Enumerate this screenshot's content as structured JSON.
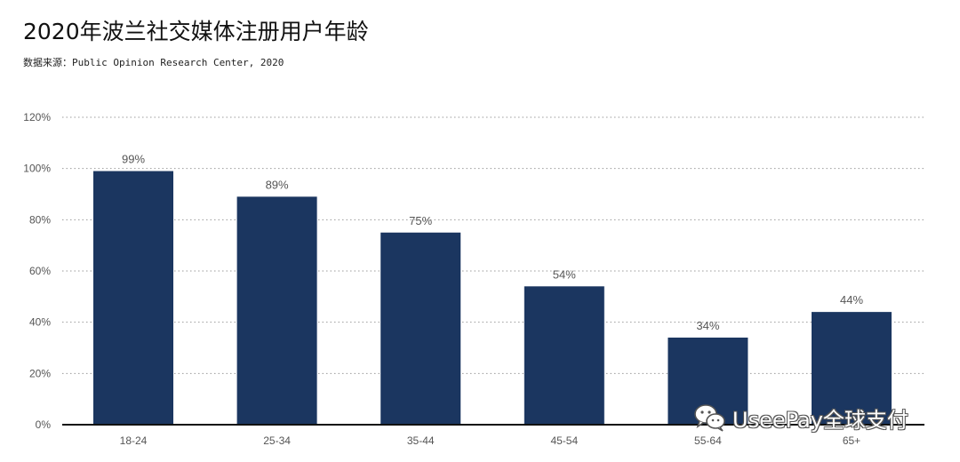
{
  "chart_data": {
    "type": "bar",
    "title": "2020年波兰社交媒体注册用户年龄",
    "subtitle": "数据来源：Public Opinion Research Center, 2020",
    "categories": [
      "18-24",
      "25-34",
      "35-44",
      "45-54",
      "55-64",
      "65+"
    ],
    "values": [
      99,
      89,
      75,
      54,
      34,
      44
    ],
    "value_labels": [
      "99%",
      "89%",
      "75%",
      "54%",
      "34%",
      "44%"
    ],
    "ylim": [
      0,
      120
    ],
    "yticks": [
      0,
      20,
      40,
      60,
      80,
      100,
      120
    ],
    "ytick_labels": [
      "0%",
      "20%",
      "40%",
      "60%",
      "80%",
      "100%",
      "120%"
    ],
    "grid": true,
    "bar_color": "#1b3660",
    "xlabel": "",
    "ylabel": ""
  },
  "watermark": {
    "text": "UseePay全球支付",
    "icon": "wechat-icon"
  }
}
